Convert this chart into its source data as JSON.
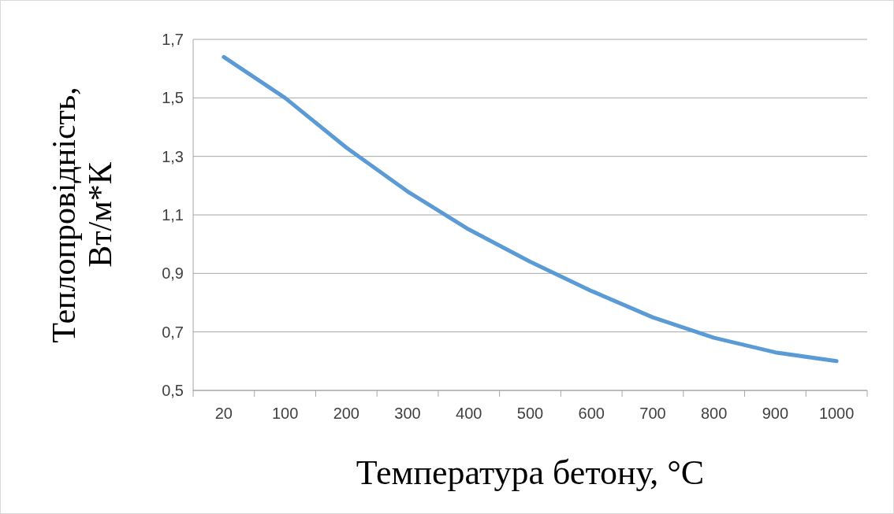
{
  "chart_data": {
    "type": "line",
    "xlabel": "Температура бетону, °C",
    "ylabel": "Теплопровідність, Вт/м*К",
    "categories": [
      "20",
      "100",
      "200",
      "300",
      "400",
      "500",
      "600",
      "700",
      "800",
      "900",
      "1000"
    ],
    "series": [
      {
        "color": "#5b9bd5",
        "values": [
          1.64,
          1.5,
          1.33,
          1.18,
          1.05,
          0.94,
          0.84,
          0.75,
          0.68,
          0.63,
          0.6
        ]
      }
    ],
    "ylim": [
      0.5,
      1.7
    ],
    "yticks": [
      {
        "value": 0.5,
        "label": "0,5"
      },
      {
        "value": 0.7,
        "label": "0,7"
      },
      {
        "value": 0.9,
        "label": "0,9"
      },
      {
        "value": 1.1,
        "label": "1,1"
      },
      {
        "value": 1.3,
        "label": "1,3"
      },
      {
        "value": 1.5,
        "label": "1,5"
      },
      {
        "value": 1.7,
        "label": "1,7"
      }
    ],
    "grid": "y",
    "marker": "none",
    "line_style": "solid"
  }
}
